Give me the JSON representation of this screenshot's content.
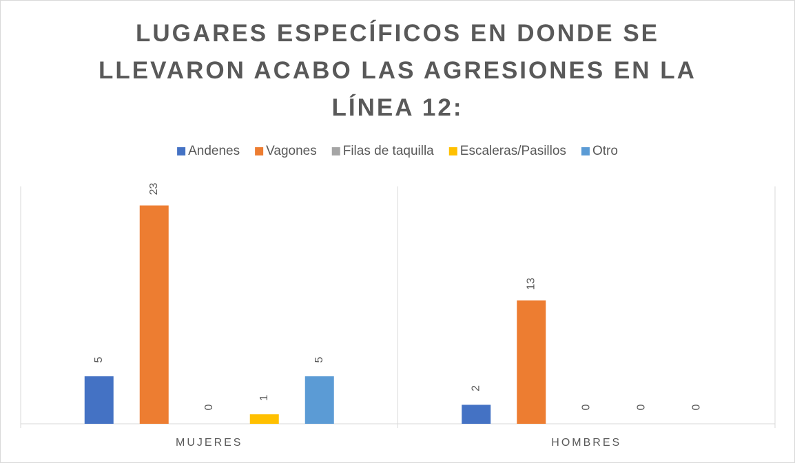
{
  "chart_data": {
    "type": "bar",
    "title": "LUGARES ESPECÍFICOS EN DONDE SE LLEVARON ACABO LAS AGRESIONES EN LA LÍNEA 12:",
    "categories": [
      "MUJERES",
      "HOMBRES"
    ],
    "series": [
      {
        "name": "Andenes",
        "color": "#4472c4",
        "values": [
          5,
          2
        ]
      },
      {
        "name": "Vagones",
        "color": "#ed7d31",
        "values": [
          23,
          13
        ]
      },
      {
        "name": "Filas de taquilla",
        "color": "#a5a5a5",
        "values": [
          0,
          0
        ]
      },
      {
        "name": "Escaleras/Pasillos",
        "color": "#ffc000",
        "values": [
          1,
          0
        ]
      },
      {
        "name": "Otro",
        "color": "#5b9bd5",
        "values": [
          5,
          0
        ]
      }
    ],
    "ylim": [
      0,
      25
    ],
    "grid": false,
    "legend": "top"
  }
}
